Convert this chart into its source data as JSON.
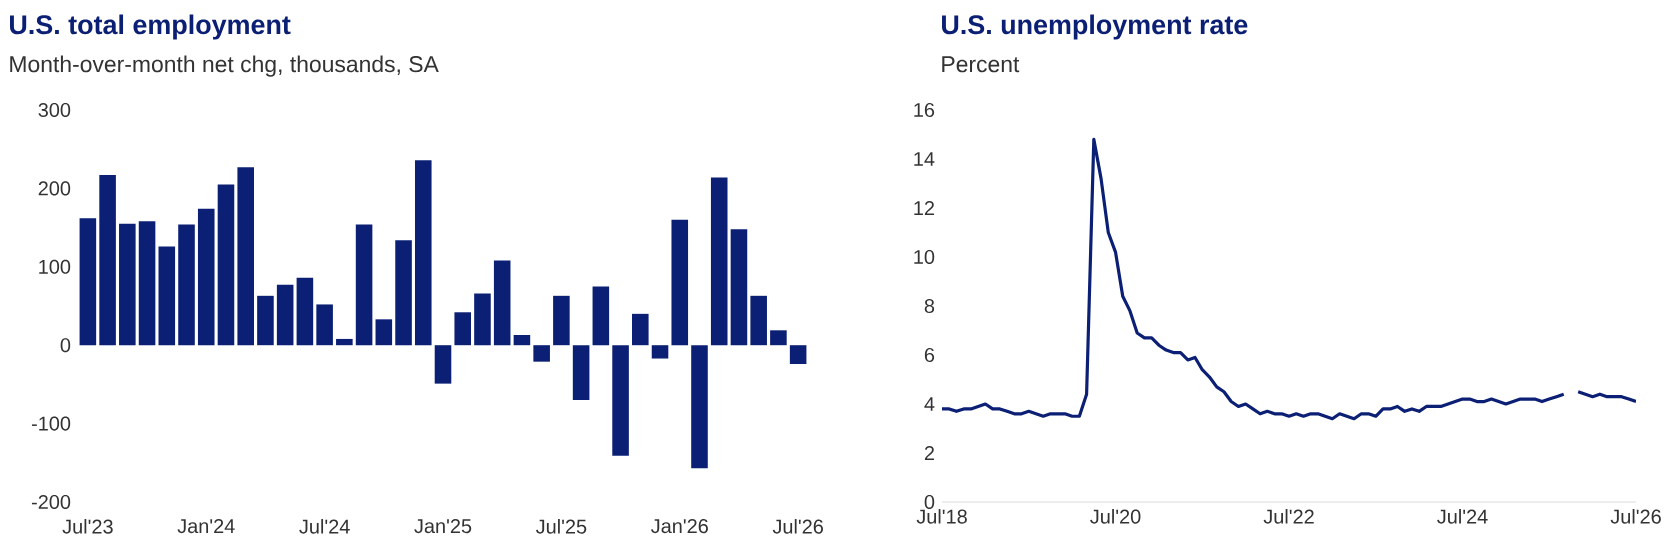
{
  "chart_data": [
    {
      "type": "bar",
      "title": "U.S. total employment",
      "subtitle": "Month-over-month net chg, thousands, SA",
      "color": "#0b1f74",
      "categories": [
        "Jul'23",
        null,
        null,
        null,
        null,
        null,
        "Jan'24",
        null,
        null,
        null,
        null,
        null,
        "Jul'24",
        null,
        null,
        null,
        null,
        null,
        "Jan'25",
        null,
        null,
        null,
        null,
        null,
        "Jul'25",
        null,
        null,
        null,
        null,
        null,
        "Jan'26",
        null,
        null,
        null,
        null,
        null,
        "Jul'26"
      ],
      "values": [
        162,
        217,
        155,
        158,
        126,
        154,
        174,
        205,
        227,
        63,
        77,
        86,
        52,
        8,
        154,
        33,
        134,
        236,
        -49,
        42,
        66,
        108,
        13,
        -21,
        63,
        -70,
        75,
        -141,
        40,
        -17,
        160,
        -157,
        214,
        148,
        63,
        19,
        -24
      ],
      "ylim": [
        -200,
        300
      ],
      "yticks": [
        -200,
        -100,
        0,
        100,
        200,
        300
      ]
    },
    {
      "type": "line",
      "title": "U.S. unemployment rate",
      "subtitle": "Percent",
      "color": "#0b1f74",
      "x": [
        "2018-07",
        "2018-08",
        "2018-09",
        "2018-10",
        "2018-11",
        "2018-12",
        "2019-01",
        "2019-02",
        "2019-03",
        "2019-04",
        "2019-05",
        "2019-06",
        "2019-07",
        "2019-08",
        "2019-09",
        "2019-10",
        "2019-11",
        "2019-12",
        "2020-01",
        "2020-02",
        "2020-03",
        "2020-04",
        "2020-05",
        "2020-06",
        "2020-07",
        "2020-08",
        "2020-09",
        "2020-10",
        "2020-11",
        "2020-12",
        "2021-01",
        "2021-02",
        "2021-03",
        "2021-04",
        "2021-05",
        "2021-06",
        "2021-07",
        "2021-08",
        "2021-09",
        "2021-10",
        "2021-11",
        "2021-12",
        "2022-01",
        "2022-02",
        "2022-03",
        "2022-04",
        "2022-05",
        "2022-06",
        "2022-07",
        "2022-08",
        "2022-09",
        "2022-10",
        "2022-11",
        "2022-12",
        "2023-01",
        "2023-02",
        "2023-03",
        "2023-04",
        "2023-05",
        "2023-06",
        "2023-07",
        "2023-08",
        "2023-09",
        "2023-10",
        "2023-11",
        "2023-12",
        "2024-01",
        "2024-02",
        "2024-03",
        "2024-04",
        "2024-05",
        "2024-06",
        "2024-07",
        "2024-08",
        "2024-09",
        "2024-10",
        "2024-11",
        "2024-12",
        "2025-01",
        "2025-02",
        "2025-03",
        "2025-04",
        "2025-05",
        "2025-06",
        "2025-07",
        "2025-08",
        "2025-09",
        "2025-10",
        "2025-11",
        "2025-12",
        "2026-01",
        "2026-02",
        "2026-03",
        "2026-04",
        "2026-05",
        "2026-06",
        "2026-07"
      ],
      "values": [
        3.8,
        3.8,
        3.7,
        3.8,
        3.8,
        3.9,
        4.0,
        3.8,
        3.8,
        3.7,
        3.6,
        3.6,
        3.7,
        3.6,
        3.5,
        3.6,
        3.6,
        3.6,
        3.5,
        3.5,
        4.4,
        14.8,
        13.2,
        11.0,
        10.2,
        8.4,
        7.8,
        6.9,
        6.7,
        6.7,
        6.4,
        6.2,
        6.1,
        6.1,
        5.8,
        5.9,
        5.4,
        5.1,
        4.7,
        4.5,
        4.1,
        3.9,
        4.0,
        3.8,
        3.6,
        3.7,
        3.6,
        3.6,
        3.5,
        3.6,
        3.5,
        3.6,
        3.6,
        3.5,
        3.4,
        3.6,
        3.5,
        3.4,
        3.6,
        3.6,
        3.5,
        3.8,
        3.8,
        3.9,
        3.7,
        3.8,
        3.7,
        3.9,
        3.9,
        3.9,
        4.0,
        4.1,
        4.2,
        4.2,
        4.1,
        4.1,
        4.2,
        4.1,
        4.0,
        4.1,
        4.2,
        4.2,
        4.2,
        4.1,
        4.2,
        4.3,
        4.4,
        null,
        4.5,
        4.4,
        4.3,
        4.4,
        4.3,
        4.3,
        4.3,
        4.2,
        4.1
      ],
      "xlim": [
        "2018-07",
        "2026-07"
      ],
      "xticks": [
        {
          "value": "2018-07",
          "label": "Jul'18"
        },
        {
          "value": "2020-07",
          "label": "Jul'20"
        },
        {
          "value": "2022-07",
          "label": "Jul'22"
        },
        {
          "value": "2024-07",
          "label": "Jul'24"
        },
        {
          "value": "2026-07",
          "label": "Jul'26"
        }
      ],
      "ylim": [
        0,
        16
      ],
      "yticks": [
        0,
        2,
        4,
        6,
        8,
        10,
        12,
        14,
        16
      ]
    }
  ]
}
